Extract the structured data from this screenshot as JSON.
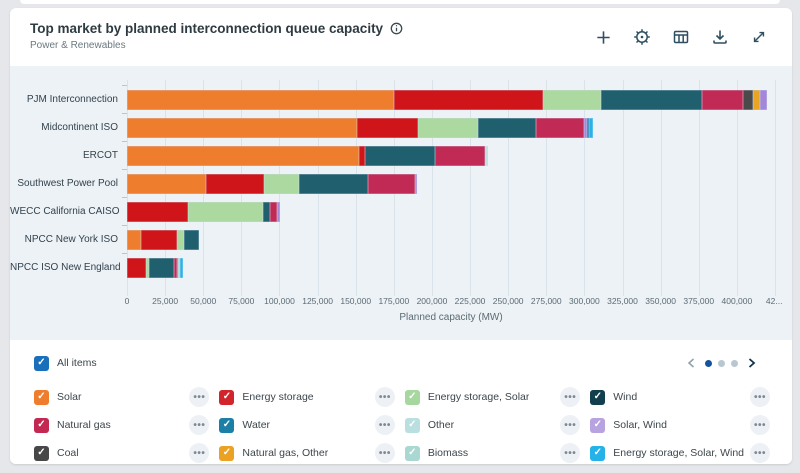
{
  "header": {
    "title": "Top market by planned interconnection queue capacity",
    "subtitle": "Power & Renewables",
    "icons": [
      "info",
      "plus",
      "settings",
      "data-table",
      "download",
      "expand"
    ]
  },
  "chart_data": {
    "type": "bar",
    "orientation": "horizontal-stacked",
    "xlabel": "Planned capacity (MW)",
    "axis": {
      "min": 0,
      "max": 425000,
      "tick_step": 25000,
      "tick_labels": [
        "0",
        "25,000",
        "50,000",
        "75,000",
        "100,000",
        "125,000",
        "150,000",
        "175,000",
        "200,000",
        "225,000",
        "250,000",
        "275,000",
        "300,000",
        "325,000",
        "350,000",
        "375,000",
        "400,000",
        "42..."
      ]
    },
    "categories": [
      "PJM Interconnection",
      "Midcontinent ISO",
      "ERCOT",
      "Southwest Power Pool",
      "WECC California CAISO",
      "NPCC New York ISO",
      "NPCC ISO New England"
    ],
    "series": [
      {
        "name": "Solar",
        "color": "#ee7d2d",
        "values": [
          175000,
          151000,
          152000,
          52000,
          0,
          9000,
          0
        ]
      },
      {
        "name": "Energy storage",
        "color": "#d0151a",
        "values": [
          98000,
          40000,
          4000,
          38000,
          40000,
          24000,
          12500
        ]
      },
      {
        "name": "Energy storage, Solar",
        "color": "#abd9a0",
        "values": [
          38000,
          39000,
          0,
          23000,
          49000,
          4500,
          2000
        ]
      },
      {
        "name": "Wind",
        "color": "#1f5f6e",
        "values": [
          66000,
          38000,
          46000,
          45000,
          5000,
          9500,
          16500
        ]
      },
      {
        "name": "Natural gas",
        "color": "#c02a54",
        "values": [
          27000,
          32000,
          33000,
          31000,
          4500,
          0,
          1500
        ]
      },
      {
        "name": "Coal",
        "color": "#4a4a4a",
        "values": [
          6500,
          0,
          0,
          0,
          0,
          0,
          0
        ]
      },
      {
        "name": "Natural gas, Other",
        "color": "#e9a422",
        "values": [
          5000,
          0,
          0,
          0,
          0,
          0,
          0
        ]
      },
      {
        "name": "Solar, Wind",
        "color": "#a387d8",
        "values": [
          4000,
          1500,
          0,
          1500,
          2000,
          0,
          0
        ]
      },
      {
        "name": "Water",
        "color": "#1b7fa6",
        "values": [
          0,
          1500,
          0,
          0,
          0,
          0,
          1000
        ]
      },
      {
        "name": "Other",
        "color": "#bfe1e3",
        "values": [
          0,
          0,
          2000,
          0,
          0,
          0,
          0
        ]
      },
      {
        "name": "Biomass",
        "color": "#abdad2",
        "values": [
          0,
          0,
          0,
          0,
          0,
          0,
          1500
        ]
      },
      {
        "name": "Energy storage, Solar, Wind",
        "color": "#27b3e8",
        "values": [
          0,
          2500,
          0,
          0,
          0,
          0,
          1500
        ]
      }
    ]
  },
  "legend": {
    "all_items_label": "All items",
    "all_items_color": "#1a6fba",
    "pagination": {
      "dots": [
        true,
        false,
        false
      ]
    },
    "items": [
      {
        "label": "Solar",
        "color": "#ee7d2d",
        "checked": true
      },
      {
        "label": "Energy storage",
        "color": "#d2252b",
        "checked": true
      },
      {
        "label": "Energy storage, Solar",
        "color": "#a5d79f",
        "checked": true
      },
      {
        "label": "Wind",
        "color": "#123f4d",
        "checked": true
      },
      {
        "label": "Natural gas",
        "color": "#c22851",
        "checked": true
      },
      {
        "label": "Water",
        "color": "#1b7fa6",
        "checked": true
      },
      {
        "label": "Other",
        "color": "#b9dfe0",
        "checked": true
      },
      {
        "label": "Solar, Wind",
        "color": "#b7a3e0",
        "checked": true
      },
      {
        "label": "Coal",
        "color": "#474747",
        "checked": true
      },
      {
        "label": "Natural gas, Other",
        "color": "#eba224",
        "checked": true
      },
      {
        "label": "Biomass",
        "color": "#a9d8d2",
        "checked": true
      },
      {
        "label": "Energy storage, Solar, Wind",
        "color": "#25b2e8",
        "checked": true
      }
    ]
  }
}
